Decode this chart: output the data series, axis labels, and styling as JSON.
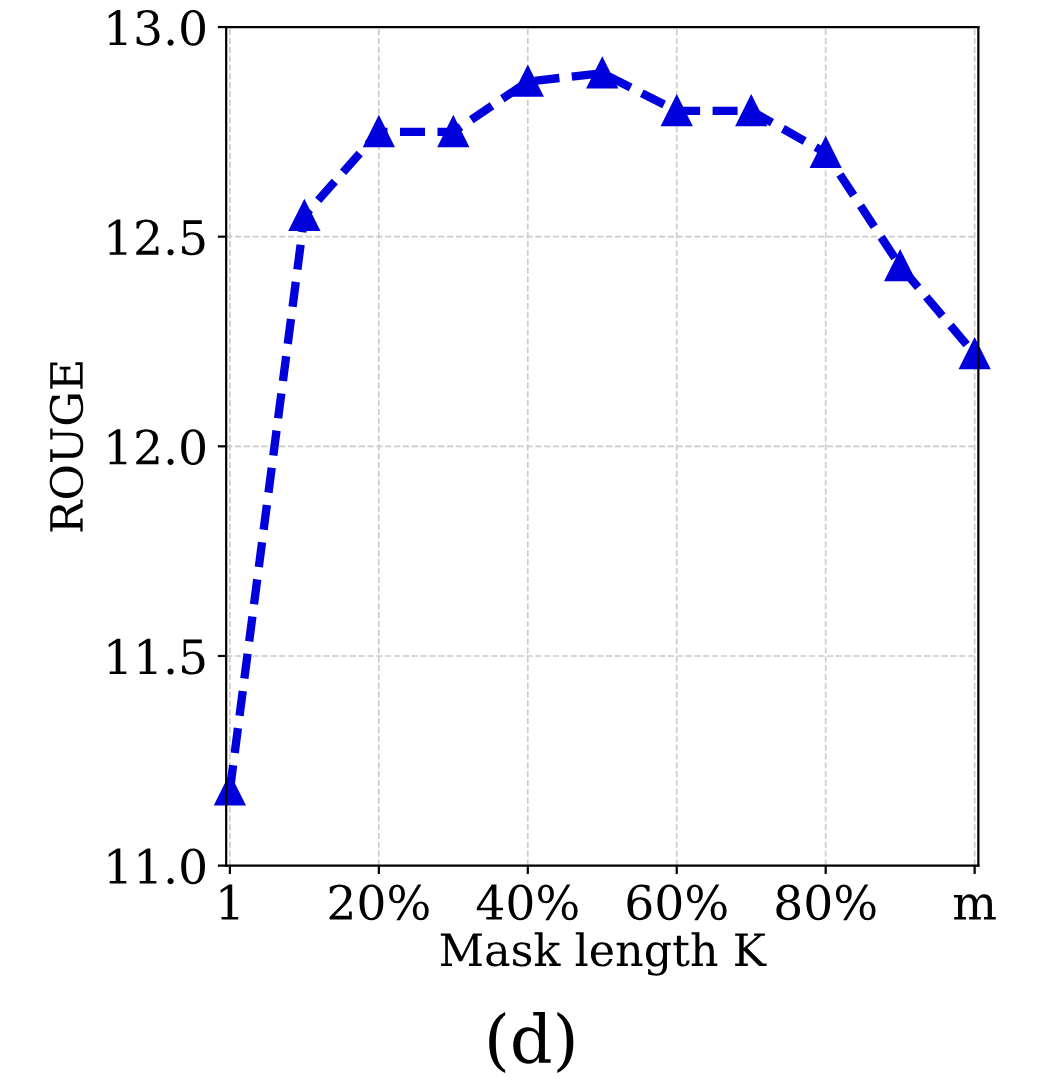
{
  "chart_data": {
    "type": "line",
    "xlabel": "Mask length K",
    "ylabel": "ROUGE",
    "annotations": [
      "(d)"
    ],
    "categories": [
      "1",
      null,
      "20%",
      null,
      "40%",
      null,
      "60%",
      null,
      "80%",
      null,
      "m"
    ],
    "series": [
      {
        "color": "#0000dd",
        "values": [
          11.18,
          12.55,
          12.75,
          12.75,
          12.87,
          12.89,
          12.8,
          12.8,
          12.7,
          12.43,
          12.22
        ]
      }
    ],
    "ylim": [
      11.0,
      13.0
    ],
    "yticks": [
      {
        "value": 11.0,
        "label": "11.0"
      },
      {
        "value": 11.5,
        "label": "11.5"
      },
      {
        "value": 12.0,
        "label": "12.0"
      },
      {
        "value": 12.5,
        "label": "12.5"
      },
      {
        "value": 13.0,
        "label": "13.0"
      }
    ],
    "grid": true,
    "marker": "triangle",
    "line_style": "dashed"
  }
}
